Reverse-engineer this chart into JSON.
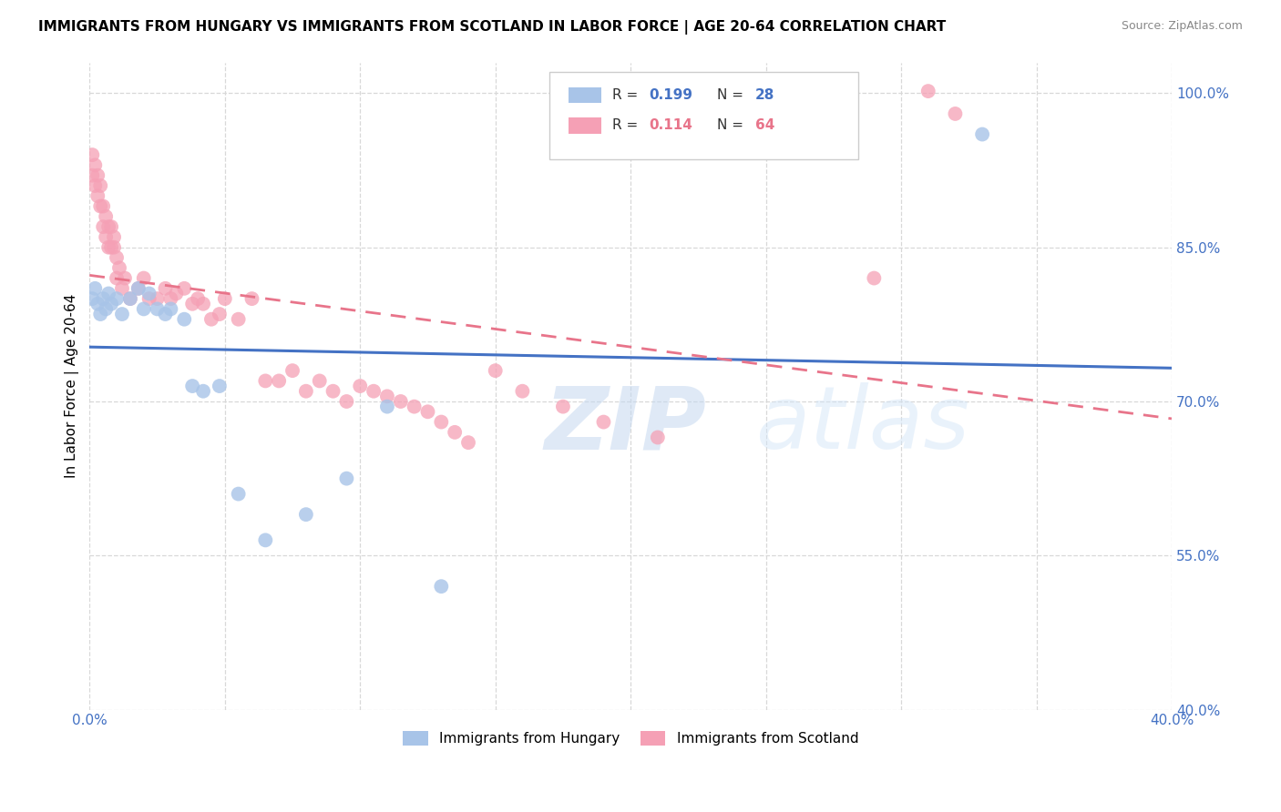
{
  "title": "IMMIGRANTS FROM HUNGARY VS IMMIGRANTS FROM SCOTLAND IN LABOR FORCE | AGE 20-64 CORRELATION CHART",
  "source": "Source: ZipAtlas.com",
  "ylabel": "In Labor Force | Age 20-64",
  "xlim": [
    0.0,
    0.4
  ],
  "ylim": [
    0.4,
    1.03
  ],
  "xtick_vals": [
    0.0,
    0.05,
    0.1,
    0.15,
    0.2,
    0.25,
    0.3,
    0.35,
    0.4
  ],
  "xticklabels": [
    "0.0%",
    "",
    "",
    "",
    "",
    "",
    "",
    "",
    "40.0%"
  ],
  "ytick_vals": [
    0.4,
    0.55,
    0.7,
    0.85,
    1.0
  ],
  "yticklabels": [
    "40.0%",
    "55.0%",
    "70.0%",
    "85.0%",
    "100.0%"
  ],
  "watermark_zip": "ZIP",
  "watermark_atlas": "atlas",
  "legend_R_hungary": "0.199",
  "legend_N_hungary": "28",
  "legend_R_scotland": "0.114",
  "legend_N_scotland": "64",
  "hungary_color": "#a8c4e8",
  "scotland_color": "#f5a0b5",
  "hungary_line_color": "#4472c4",
  "scotland_line_color": "#e8748a",
  "grid_color": "#d8d8d8",
  "axis_color": "#4472c4",
  "background_color": "#ffffff",
  "hungary_x": [
    0.001,
    0.002,
    0.003,
    0.004,
    0.005,
    0.006,
    0.007,
    0.008,
    0.01,
    0.012,
    0.015,
    0.018,
    0.02,
    0.022,
    0.025,
    0.028,
    0.03,
    0.035,
    0.038,
    0.042,
    0.048,
    0.055,
    0.065,
    0.08,
    0.095,
    0.11,
    0.13,
    0.33
  ],
  "hungary_y": [
    0.8,
    0.81,
    0.795,
    0.785,
    0.8,
    0.79,
    0.805,
    0.795,
    0.8,
    0.785,
    0.8,
    0.81,
    0.79,
    0.805,
    0.79,
    0.785,
    0.79,
    0.78,
    0.715,
    0.71,
    0.715,
    0.61,
    0.565,
    0.59,
    0.625,
    0.695,
    0.52,
    0.96
  ],
  "scotland_x": [
    0.001,
    0.001,
    0.002,
    0.002,
    0.003,
    0.003,
    0.004,
    0.004,
    0.005,
    0.005,
    0.006,
    0.006,
    0.007,
    0.007,
    0.008,
    0.008,
    0.009,
    0.009,
    0.01,
    0.01,
    0.011,
    0.012,
    0.013,
    0.015,
    0.018,
    0.02,
    0.022,
    0.025,
    0.028,
    0.03,
    0.032,
    0.035,
    0.038,
    0.04,
    0.042,
    0.045,
    0.048,
    0.05,
    0.055,
    0.06,
    0.065,
    0.07,
    0.075,
    0.08,
    0.085,
    0.09,
    0.095,
    0.1,
    0.105,
    0.11,
    0.115,
    0.12,
    0.125,
    0.13,
    0.135,
    0.14,
    0.15,
    0.16,
    0.175,
    0.19,
    0.21,
    0.29,
    0.31,
    0.32
  ],
  "scotland_y": [
    0.94,
    0.92,
    0.91,
    0.93,
    0.9,
    0.92,
    0.89,
    0.91,
    0.87,
    0.89,
    0.86,
    0.88,
    0.85,
    0.87,
    0.85,
    0.87,
    0.85,
    0.86,
    0.84,
    0.82,
    0.83,
    0.81,
    0.82,
    0.8,
    0.81,
    0.82,
    0.8,
    0.8,
    0.81,
    0.8,
    0.805,
    0.81,
    0.795,
    0.8,
    0.795,
    0.78,
    0.785,
    0.8,
    0.78,
    0.8,
    0.72,
    0.72,
    0.73,
    0.71,
    0.72,
    0.71,
    0.7,
    0.715,
    0.71,
    0.705,
    0.7,
    0.695,
    0.69,
    0.68,
    0.67,
    0.66,
    0.73,
    0.71,
    0.695,
    0.68,
    0.665,
    0.82,
    1.002,
    0.98
  ]
}
